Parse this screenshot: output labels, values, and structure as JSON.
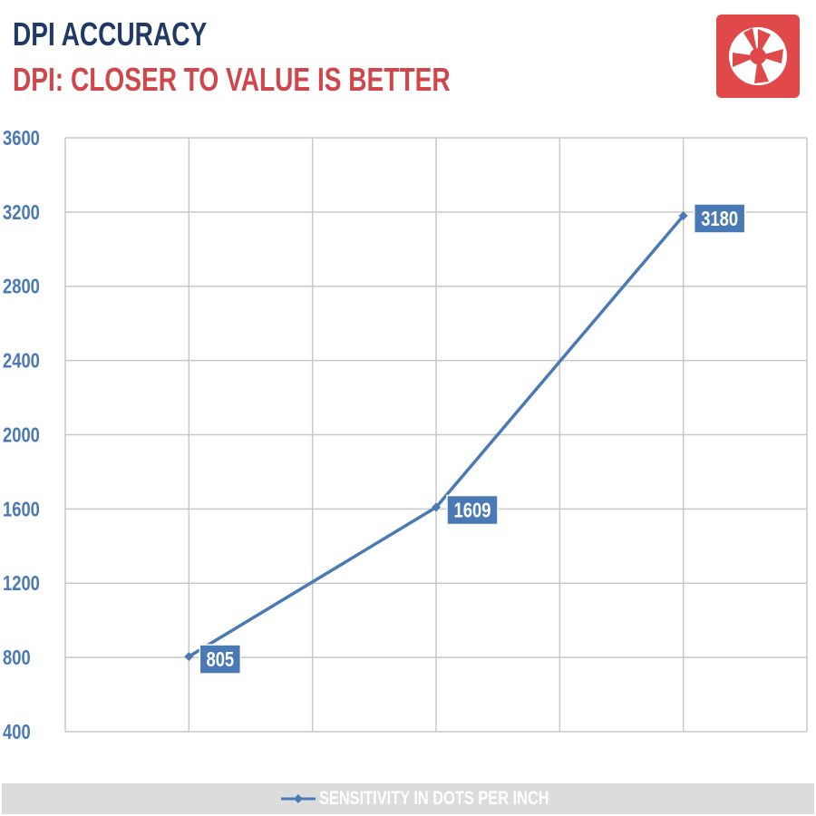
{
  "header": {
    "title": "DPI ACCURACY",
    "subtitle": "DPI: CLOSER TO VALUE IS BETTER"
  },
  "logo": {
    "icon": "camera-aperture-icon",
    "color": "#e0484a"
  },
  "colors": {
    "title": "#1f3a66",
    "subtitle": "#d0464a",
    "series": "#4a7ab5",
    "grid": "#c8c8c8",
    "legend_background": "#dcdcdc"
  },
  "chart_data": {
    "type": "line",
    "title": "DPI ACCURACY",
    "subtitle": "DPI: CLOSER TO VALUE IS BETTER",
    "xlabel": "",
    "ylabel": "",
    "ylim": [
      400,
      3600
    ],
    "yticks": [
      400,
      800,
      1200,
      1600,
      2000,
      2400,
      2800,
      3200,
      3600
    ],
    "x_slots": 6,
    "grid": true,
    "legend_placement": "bottom",
    "series": [
      {
        "name": "SENSITIVITY IN DOTS PER INCH",
        "color": "#4a7ab5",
        "points": [
          {
            "slot": 1,
            "value": 805,
            "label": "805"
          },
          {
            "slot": 3,
            "value": 1609,
            "label": "1609"
          },
          {
            "slot": 5,
            "value": 3180,
            "label": "3180"
          }
        ]
      }
    ]
  }
}
